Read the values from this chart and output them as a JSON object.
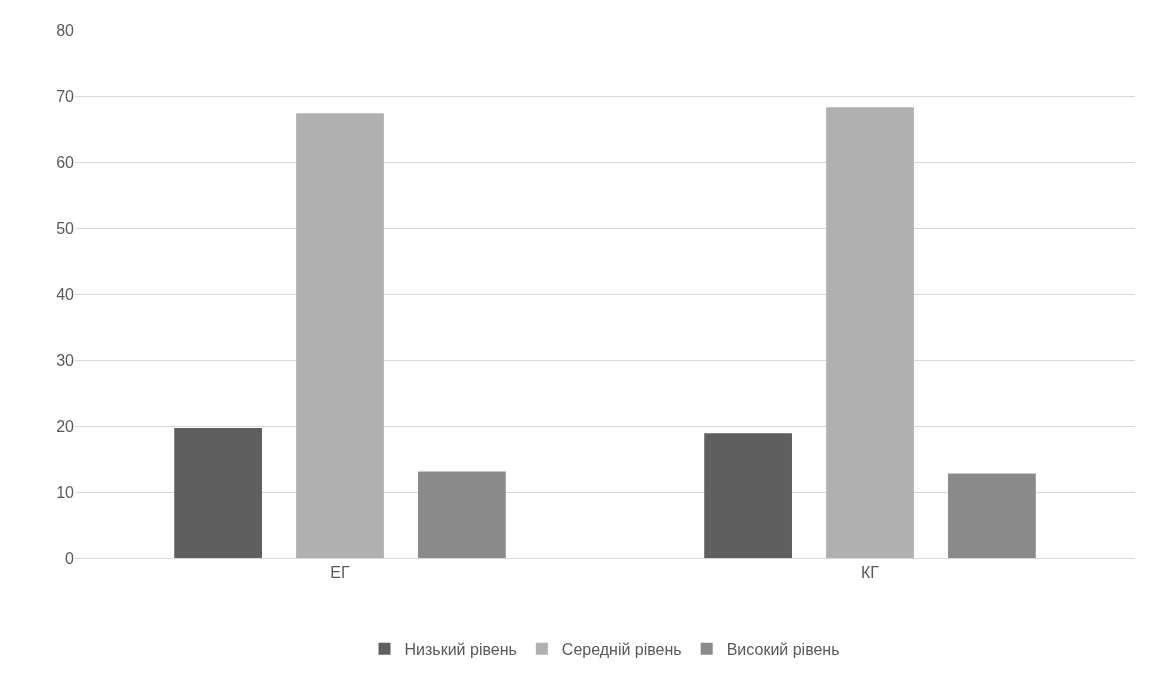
{
  "chart_data": {
    "type": "bar",
    "categories": [
      "ЕГ",
      "КГ"
    ],
    "series": [
      {
        "name": "Низький рівень",
        "color": "#5f5f5f",
        "values": [
          19.7,
          18.9
        ]
      },
      {
        "name": "Середній рівень",
        "color": "#b0b0b0",
        "values": [
          67.4,
          68.3
        ]
      },
      {
        "name": "Високий рівень",
        "color": "#8a8a8a",
        "values": [
          13.1,
          12.8
        ]
      }
    ],
    "ylim": [
      0,
      80
    ],
    "yticks": [
      0,
      10,
      20,
      30,
      40,
      50,
      60,
      70,
      80
    ],
    "grid": "y",
    "legend": "bottom"
  }
}
